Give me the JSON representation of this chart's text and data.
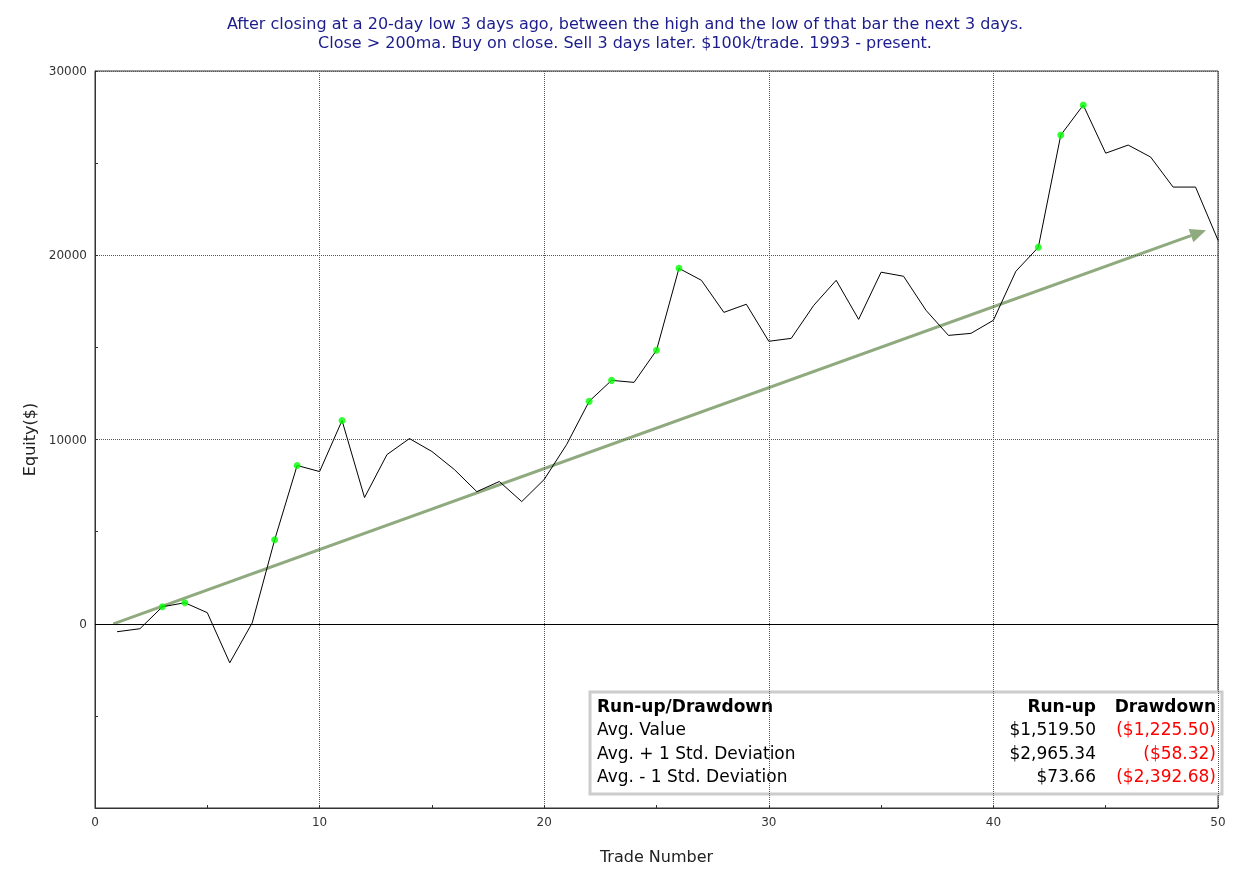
{
  "chart_data": {
    "type": "line",
    "title": "After closing at a 20-day low 3 days ago, between the high and the low of that bar the next 3 days.",
    "subtitle": "Close > 200ma. Buy on close. Sell 3 days later. $100k/trade. 1993 - present.",
    "xlabel": "Trade Number",
    "ylabel": "Equity($)",
    "x": [
      1,
      2,
      3,
      4,
      5,
      6,
      7,
      8,
      9,
      10,
      11,
      12,
      13,
      14,
      15,
      16,
      17,
      18,
      19,
      20,
      21,
      22,
      23,
      24,
      25,
      26,
      27,
      28,
      29,
      30,
      31,
      32,
      33,
      34,
      35,
      36,
      37,
      38,
      39,
      40,
      41,
      42,
      43,
      44,
      45,
      46,
      47,
      48,
      49,
      50
    ],
    "series": [
      {
        "type": "line",
        "color": "#000000",
        "marker": "none",
        "values": [
          -430,
          -270,
          920,
          1140,
          600,
          -2120,
          50,
          4560,
          8590,
          8260,
          11030,
          6850,
          9180,
          10050,
          9350,
          8370,
          7170,
          7720,
          6630,
          7830,
          9730,
          12070,
          13210,
          13100,
          14840,
          19290,
          18640,
          16900,
          17340,
          15330,
          15490,
          17280,
          18640,
          16520,
          19080,
          18860,
          17010,
          15650,
          15760,
          16470,
          19130,
          20430,
          26520,
          28150,
          25540,
          25980,
          25330,
          23700,
          23700,
          20820
        ]
      },
      {
        "type": "scatter",
        "color": "#00ff00",
        "marker": "circle",
        "x": [
          3,
          4,
          8,
          9,
          11,
          22,
          23,
          25,
          26,
          42,
          43,
          44
        ],
        "values": [
          920,
          1140,
          4560,
          8590,
          11030,
          12070,
          13210,
          14840,
          19290,
          20430,
          26520,
          28150
        ]
      }
    ],
    "xlim": [
      0,
      50
    ],
    "xticks": [
      0,
      {
        "value": 5,
        "label": null
      },
      10,
      {
        "value": 15,
        "label": null
      },
      20,
      {
        "value": 25,
        "label": null
      },
      30,
      {
        "value": 35,
        "label": null
      },
      40,
      {
        "value": 45,
        "label": null
      },
      50
    ],
    "ylim": [
      -10000,
      30000
    ],
    "yticks": [
      {
        "value": -10000,
        "label": null
      },
      {
        "value": -5000,
        "label": null
      },
      0,
      {
        "value": 5000,
        "label": null
      },
      10000,
      {
        "value": 15000,
        "label": null
      },
      20000,
      {
        "value": 25000,
        "label": null
      },
      30000
    ],
    "grid": true,
    "ref_lines": [
      {
        "axis": "y",
        "value": 0,
        "color": "#000000",
        "line_style": "solid"
      }
    ],
    "annotations": [
      "Run-up/Drawdown",
      "Run-up",
      "Drawdown",
      "Avg. Value",
      "$1,519.50",
      "($1,225.50)",
      "Avg. + 1 Std. Deviation",
      "$2,965.34",
      "($58.32)",
      "Avg. - 1 Std. Deviation",
      "$73.66",
      "($2,392.68)"
    ]
  }
}
